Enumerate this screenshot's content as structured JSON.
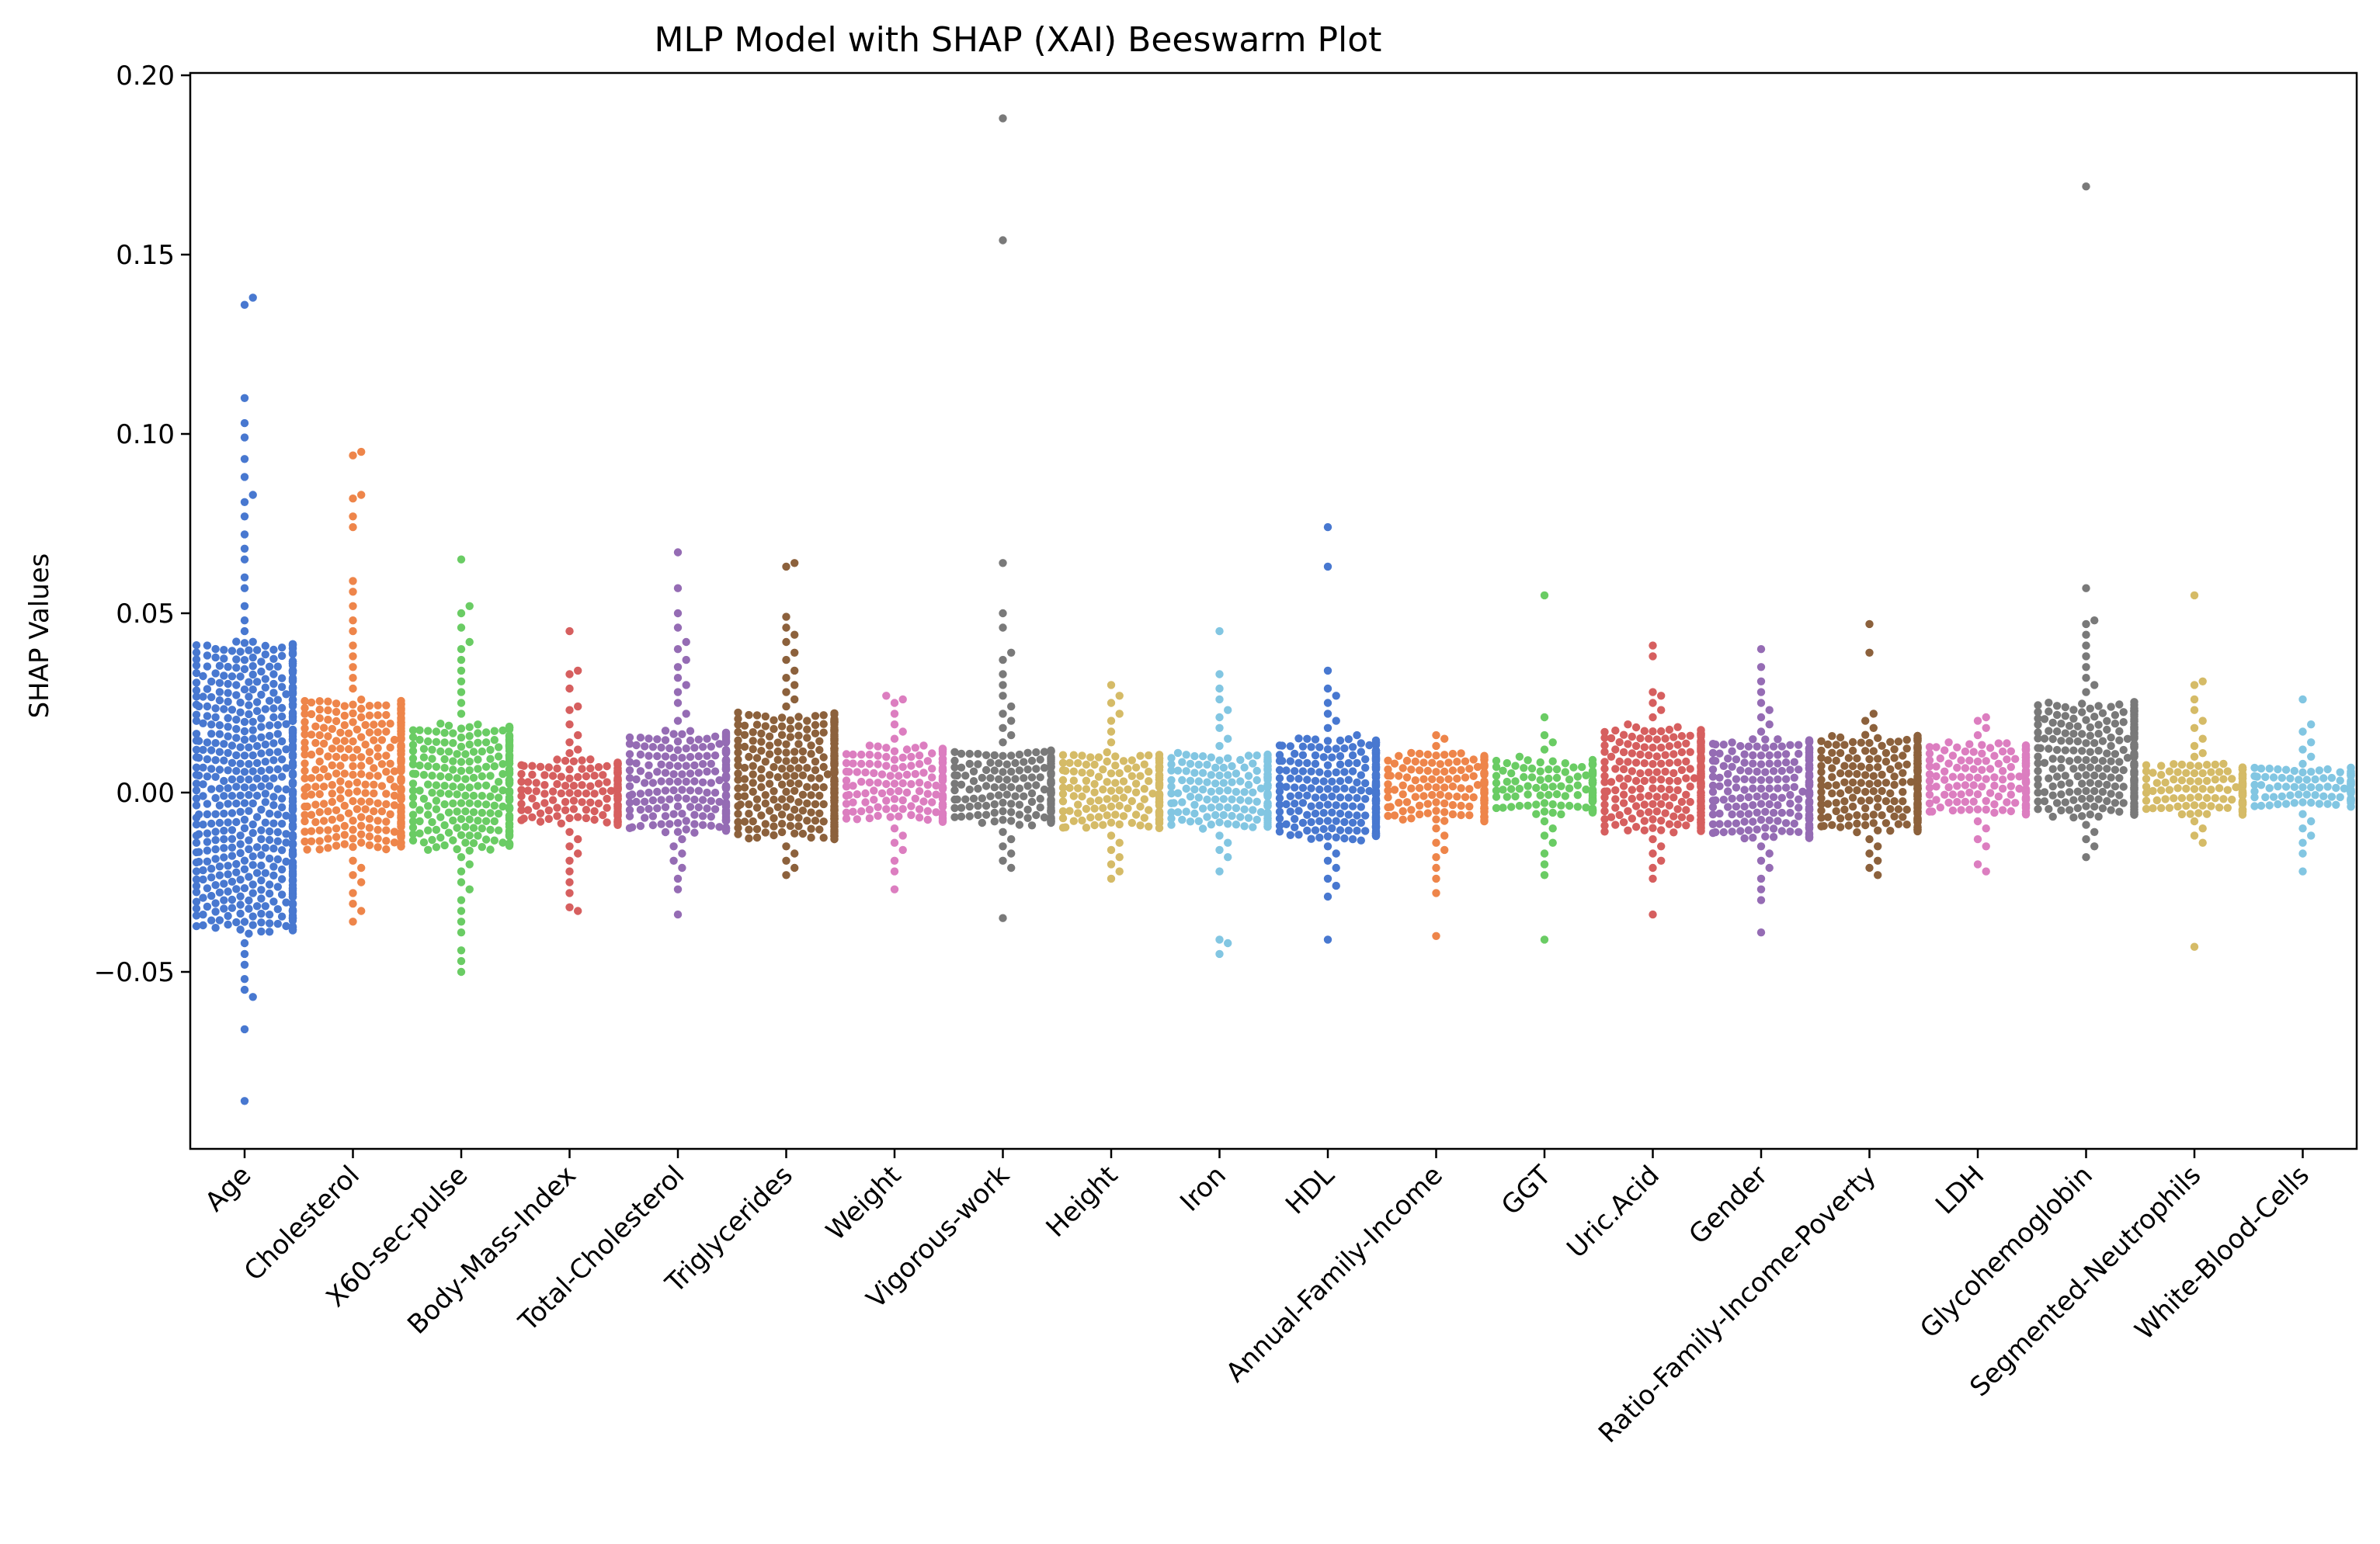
{
  "chart_data": {
    "type": "scatter",
    "subtype": "beeswarm",
    "title": "MLP Model with SHAP (XAI) Beeswarm Plot",
    "xlabel": "",
    "ylabel": "SHAP Values",
    "ylim": [
      -0.1,
      0.2
    ],
    "yticks": [
      -0.05,
      0.0,
      0.05,
      0.1,
      0.15,
      0.2
    ],
    "ytick_labels": [
      "−0.05",
      "0.00",
      "0.05",
      "0.10",
      "0.15",
      "0.20"
    ],
    "grid": false,
    "legend": "none",
    "categories": [
      "Age",
      "Cholesterol",
      "X60-sec-pulse",
      "Body-Mass-Index",
      "Total-Cholesterol",
      "Triglycerides",
      "Weight",
      "Vigorous-work",
      "Height",
      "Iron",
      "HDL",
      "Annual-Family-Income",
      "GGT",
      "Uric.Acid",
      "Gender",
      "Ratio-Family-Income-Poverty",
      "LDH",
      "Glycohemoglobin",
      "Segmented-Neutrophils",
      "White-Blood-Cells"
    ],
    "colors": [
      "#4878d0",
      "#ee854a",
      "#6acc64",
      "#d65f5f",
      "#956cb4",
      "#8c613c",
      "#dc7ec0",
      "#797979",
      "#d5bb67",
      "#82c6e2",
      "#4878d0",
      "#ee854a",
      "#6acc64",
      "#d65f5f",
      "#956cb4",
      "#8c613c",
      "#dc7ec0",
      "#797979",
      "#d5bb67",
      "#82c6e2"
    ],
    "series": [
      {
        "category": "Age",
        "core_range": [
          -0.039,
          0.042
        ],
        "n_core": 560,
        "extras": [
          0.138,
          0.136,
          0.11,
          0.103,
          0.099,
          0.093,
          0.088,
          0.083,
          0.081,
          0.077,
          0.072,
          0.068,
          0.065,
          0.06,
          0.057,
          0.052,
          0.048,
          0.045,
          -0.042,
          -0.045,
          -0.048,
          -0.052,
          -0.055,
          -0.057,
          -0.066,
          -0.086
        ]
      },
      {
        "category": "Cholesterol",
        "core_range": [
          -0.016,
          0.026
        ],
        "n_core": 300,
        "extras": [
          0.095,
          0.094,
          0.083,
          0.082,
          0.077,
          0.074,
          0.059,
          0.056,
          0.052,
          0.048,
          0.045,
          0.041,
          0.038,
          0.035,
          0.032,
          0.029,
          -0.019,
          -0.021,
          -0.023,
          -0.025,
          -0.028,
          -0.031,
          -0.033,
          -0.036
        ]
      },
      {
        "category": "X60-sec-pulse",
        "core_range": [
          -0.016,
          0.019
        ],
        "n_core": 260,
        "extras": [
          0.065,
          0.052,
          0.05,
          0.046,
          0.042,
          0.04,
          0.037,
          0.034,
          0.031,
          0.028,
          0.025,
          0.022,
          -0.018,
          -0.02,
          -0.022,
          -0.025,
          -0.027,
          -0.03,
          -0.033,
          -0.036,
          -0.039,
          -0.044,
          -0.047,
          -0.05
        ]
      },
      {
        "category": "Body-Mass-Index",
        "core_range": [
          -0.009,
          0.009
        ],
        "n_core": 160,
        "extras": [
          0.045,
          0.034,
          0.033,
          0.029,
          0.024,
          0.023,
          0.019,
          0.016,
          0.014,
          0.012,
          0.011,
          -0.011,
          -0.013,
          -0.015,
          -0.017,
          -0.019,
          -0.022,
          -0.025,
          -0.028,
          -0.032,
          -0.033
        ]
      },
      {
        "category": "Total-Cholesterol",
        "core_range": [
          -0.011,
          0.017
        ],
        "n_core": 220,
        "extras": [
          0.067,
          0.057,
          0.05,
          0.046,
          0.042,
          0.04,
          0.037,
          0.035,
          0.032,
          0.03,
          0.028,
          0.025,
          0.022,
          0.02,
          -0.013,
          -0.015,
          -0.017,
          -0.019,
          -0.021,
          -0.024,
          -0.027,
          -0.034
        ]
      },
      {
        "category": "Triglycerides",
        "core_range": [
          -0.013,
          0.022
        ],
        "n_core": 300,
        "extras": [
          0.064,
          0.063,
          0.049,
          0.046,
          0.044,
          0.042,
          0.039,
          0.037,
          0.034,
          0.032,
          0.03,
          0.028,
          0.026,
          0.024,
          -0.015,
          -0.017,
          -0.019,
          -0.021,
          -0.023
        ]
      },
      {
        "category": "Weight",
        "core_range": [
          -0.008,
          0.013
        ],
        "n_core": 160,
        "extras": [
          0.027,
          0.026,
          0.025,
          0.022,
          0.019,
          0.017,
          0.015,
          -0.01,
          -0.012,
          -0.014,
          -0.016,
          -0.019,
          -0.022,
          -0.027
        ]
      },
      {
        "category": "Vigorous-work",
        "core_range": [
          -0.009,
          0.012
        ],
        "n_core": 170,
        "extras": [
          0.188,
          0.154,
          0.064,
          0.05,
          0.046,
          0.039,
          0.037,
          0.033,
          0.03,
          0.027,
          0.024,
          0.022,
          0.02,
          0.018,
          0.016,
          0.014,
          -0.011,
          -0.013,
          -0.015,
          -0.017,
          -0.019,
          -0.021,
          -0.035
        ]
      },
      {
        "category": "Height",
        "core_range": [
          -0.01,
          0.011
        ],
        "n_core": 160,
        "extras": [
          0.03,
          0.027,
          0.025,
          0.022,
          0.02,
          0.017,
          0.014,
          -0.012,
          -0.014,
          -0.016,
          -0.018,
          -0.02,
          -0.022,
          -0.024
        ]
      },
      {
        "category": "Iron",
        "core_range": [
          -0.01,
          0.011
        ],
        "n_core": 160,
        "extras": [
          0.045,
          0.033,
          0.029,
          0.026,
          0.023,
          0.021,
          0.018,
          0.015,
          0.013,
          -0.012,
          -0.014,
          -0.016,
          -0.018,
          -0.022,
          -0.041,
          -0.042,
          -0.045
        ]
      },
      {
        "category": "HDL",
        "core_range": [
          -0.013,
          0.015
        ],
        "n_core": 260,
        "extras": [
          0.074,
          0.063,
          0.034,
          0.029,
          0.027,
          0.025,
          0.022,
          0.02,
          0.018,
          0.016,
          -0.015,
          -0.017,
          -0.019,
          -0.021,
          -0.024,
          -0.026,
          -0.029,
          -0.041
        ]
      },
      {
        "category": "Annual-Family-Income",
        "core_range": [
          -0.008,
          0.011
        ],
        "n_core": 160,
        "extras": [
          0.016,
          0.015,
          0.013,
          -0.01,
          -0.012,
          -0.014,
          -0.016,
          -0.018,
          -0.021,
          -0.024,
          -0.028,
          -0.04
        ]
      },
      {
        "category": "GGT",
        "core_range": [
          -0.006,
          0.009
        ],
        "n_core": 120,
        "extras": [
          0.055,
          0.021,
          0.016,
          0.014,
          0.012,
          0.01,
          -0.008,
          -0.01,
          -0.012,
          -0.014,
          -0.017,
          -0.02,
          -0.023,
          -0.041
        ]
      },
      {
        "category": "Uric.Acid",
        "core_range": [
          -0.011,
          0.018
        ],
        "n_core": 260,
        "extras": [
          0.041,
          0.038,
          0.028,
          0.027,
          0.025,
          0.023,
          0.021,
          0.019,
          -0.013,
          -0.015,
          -0.017,
          -0.019,
          -0.021,
          -0.024,
          -0.034
        ]
      },
      {
        "category": "Gender",
        "core_range": [
          -0.013,
          0.015
        ],
        "n_core": 240,
        "extras": [
          0.04,
          0.035,
          0.031,
          0.028,
          0.025,
          0.023,
          0.021,
          0.019,
          0.017,
          -0.015,
          -0.017,
          -0.019,
          -0.021,
          -0.024,
          -0.027,
          -0.03,
          -0.039
        ]
      },
      {
        "category": "Ratio-Family-Income-Poverty",
        "core_range": [
          -0.011,
          0.016
        ],
        "n_core": 240,
        "extras": [
          0.047,
          0.039,
          0.022,
          0.02,
          0.018,
          -0.013,
          -0.015,
          -0.017,
          -0.019,
          -0.021,
          -0.023
        ]
      },
      {
        "category": "LDH",
        "core_range": [
          -0.006,
          0.014
        ],
        "n_core": 160,
        "extras": [
          0.021,
          0.02,
          0.018,
          0.016,
          -0.008,
          -0.01,
          -0.013,
          -0.015,
          -0.02,
          -0.022
        ]
      },
      {
        "category": "Glycohemoglobin",
        "core_range": [
          -0.007,
          0.025
        ],
        "n_core": 260,
        "extras": [
          0.169,
          0.057,
          0.048,
          0.047,
          0.044,
          0.041,
          0.038,
          0.035,
          0.032,
          0.03,
          0.028,
          -0.009,
          -0.011,
          -0.013,
          -0.015,
          -0.018
        ]
      },
      {
        "category": "Segmented-Neutrophils",
        "core_range": [
          -0.006,
          0.008
        ],
        "n_core": 140,
        "extras": [
          0.055,
          0.031,
          0.03,
          0.026,
          0.023,
          0.02,
          0.018,
          0.015,
          0.013,
          0.011,
          0.01,
          -0.008,
          -0.01,
          -0.012,
          -0.014,
          -0.043
        ]
      },
      {
        "category": "White-Blood-Cells",
        "core_range": [
          -0.004,
          0.007
        ],
        "n_core": 110,
        "extras": [
          0.026,
          0.019,
          0.017,
          0.014,
          0.012,
          0.01,
          0.008,
          -0.006,
          -0.008,
          -0.01,
          -0.012,
          -0.014,
          -0.017,
          -0.022
        ]
      }
    ]
  }
}
